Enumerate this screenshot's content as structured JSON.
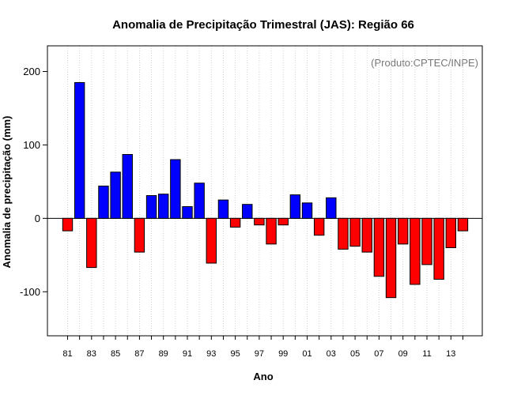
{
  "chart_data": {
    "type": "bar",
    "title": "Anomalia de Precipitação Trimestral (JAS): Região 66",
    "xlabel": "Ano",
    "ylabel": "Anomalia de precipitação (mm)",
    "annotation": "(Produto:CPTEC/INPE)",
    "ylim": [
      -160,
      235
    ],
    "yticks": [
      -100,
      0,
      100,
      200
    ],
    "grid": "vertical dotted",
    "positive_color": "#0000ff",
    "negative_color": "#ff0000",
    "categories": [
      "81",
      "82",
      "83",
      "84",
      "85",
      "86",
      "87",
      "88",
      "89",
      "90",
      "91",
      "92",
      "93",
      "94",
      "95",
      "96",
      "97",
      "98",
      "99",
      "00",
      "01",
      "02",
      "03",
      "04",
      "05",
      "06",
      "07",
      "08",
      "09",
      "10",
      "11",
      "12",
      "13",
      "14"
    ],
    "xtick_labels": [
      "81",
      "83",
      "85",
      "87",
      "89",
      "91",
      "93",
      "95",
      "97",
      "99",
      "01",
      "03",
      "05",
      "07",
      "09",
      "11",
      "13"
    ],
    "values": [
      -17,
      185,
      -67,
      44,
      63,
      87,
      -46,
      31,
      33,
      80,
      16,
      48,
      -61,
      25,
      -12,
      19,
      -9,
      -35,
      -9,
      32,
      21,
      -23,
      28,
      -42,
      -38,
      -46,
      -79,
      -108,
      -35,
      -90,
      -63,
      -83,
      -40,
      -17
    ]
  }
}
